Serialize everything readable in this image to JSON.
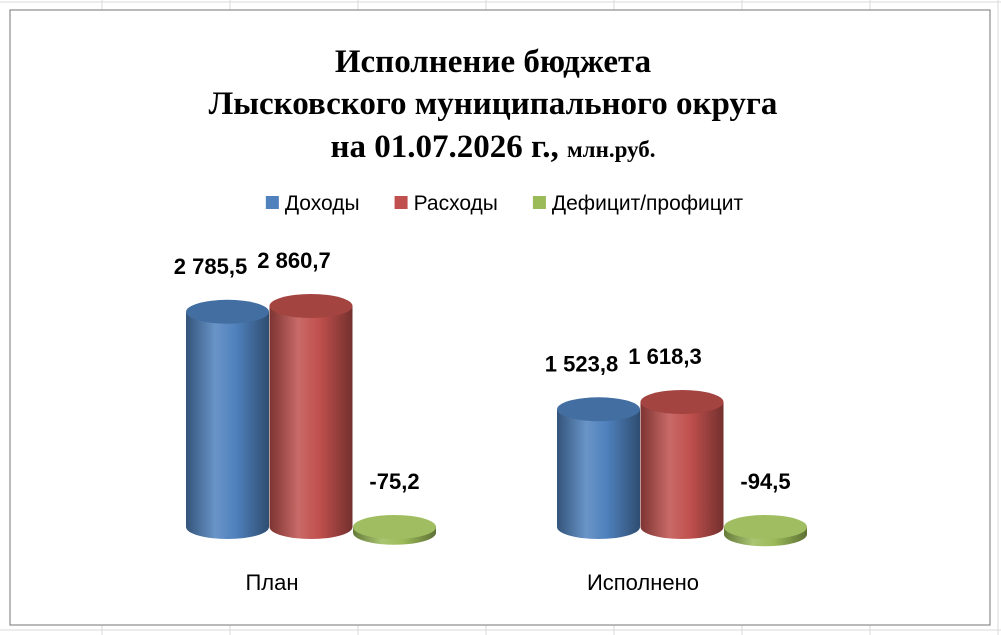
{
  "chart_data": {
    "type": "cylinder",
    "title_lines": [
      "Исполнение бюджета",
      "Лысковского муниципального округа",
      "на 01.07.2026 г.,"
    ],
    "title_unit": "млн.руб.",
    "categories": [
      "План",
      "Исполнено"
    ],
    "series": [
      {
        "name": "Доходы",
        "color": "#4f81bd",
        "values": [
          2785.5,
          1523.8
        ],
        "value_labels": [
          "2 785,5",
          "1 523,8"
        ]
      },
      {
        "name": "Расходы",
        "color": "#c0504d",
        "values": [
          2860.7,
          1618.3
        ],
        "value_labels": [
          "2 860,7",
          "1 618,3"
        ]
      },
      {
        "name": "Дефицит/профицит",
        "color": "#9bbb59",
        "values": [
          -75.2,
          -94.5
        ],
        "value_labels": [
          "-75,2",
          "-94,5"
        ]
      }
    ],
    "legend": "top"
  }
}
